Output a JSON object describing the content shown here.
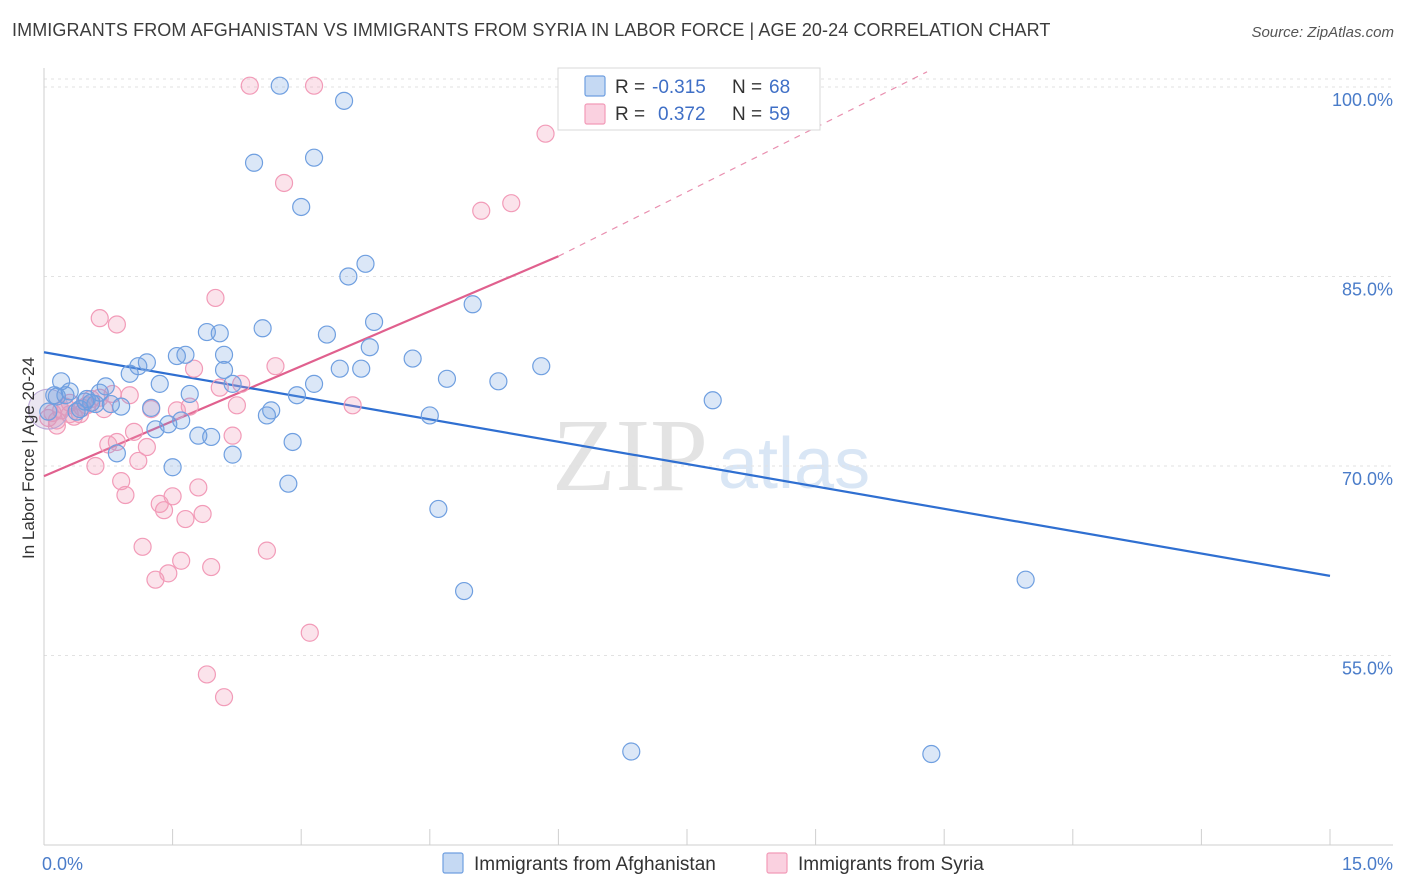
{
  "title": "IMMIGRANTS FROM AFGHANISTAN VS IMMIGRANTS FROM SYRIA IN LABOR FORCE | AGE 20-24 CORRELATION CHART",
  "source": "Source: ZipAtlas.com",
  "watermark": {
    "zip": "ZIP",
    "atlas": "atlas"
  },
  "legend": {
    "r_label": "R =",
    "n_label": "N =",
    "entries": [
      {
        "r": "-0.315",
        "n": "68"
      },
      {
        "r": "0.372",
        "n": "59"
      }
    ]
  },
  "bottom_legend": [
    "Immigrants from Afghanistan",
    "Immigrants from Syria"
  ],
  "chart_data": {
    "type": "scatter",
    "title": "IMMIGRANTS FROM AFGHANISTAN VS IMMIGRANTS FROM SYRIA IN LABOR FORCE | AGE 20-24 CORRELATION CHART",
    "xlabel": "",
    "ylabel": "In Labor Force | Age 20-24",
    "xlim": [
      0,
      15
    ],
    "ylim": [
      40,
      101.5
    ],
    "x_tick_labels": [
      "0.0%",
      "15.0%"
    ],
    "y_ticks": [
      55,
      70,
      85,
      100
    ],
    "y_tick_labels": [
      "55.0%",
      "70.0%",
      "85.0%",
      "100.0%"
    ],
    "grid": true,
    "colors": {
      "afghanistan": "#6f9fe0",
      "syria": "#f29bb8",
      "afghanistan_line": "#2f6fd1",
      "syria_line": "#e0608e"
    },
    "series": [
      {
        "name": "Immigrants from Afghanistan",
        "r": -0.315,
        "n": 68,
        "trend": {
          "x": [
            0,
            15
          ],
          "y": [
            79.0,
            61.3
          ]
        },
        "points": [
          [
            0.05,
            74.3
          ],
          [
            0.12,
            75.6
          ],
          [
            0.2,
            76.7
          ],
          [
            0.25,
            75.6
          ],
          [
            0.3,
            75.9
          ],
          [
            0.38,
            74.3
          ],
          [
            0.42,
            74.5
          ],
          [
            0.48,
            75.1
          ],
          [
            0.5,
            75.3
          ],
          [
            0.6,
            74.9
          ],
          [
            0.65,
            75.8
          ],
          [
            0.72,
            76.3
          ],
          [
            0.78,
            74.9
          ],
          [
            0.85,
            71.0
          ],
          [
            0.9,
            74.7
          ],
          [
            1.0,
            77.3
          ],
          [
            1.1,
            77.9
          ],
          [
            1.2,
            78.2
          ],
          [
            1.25,
            74.6
          ],
          [
            1.3,
            72.9
          ],
          [
            1.35,
            76.5
          ],
          [
            1.45,
            73.3
          ],
          [
            1.5,
            69.9
          ],
          [
            1.6,
            73.6
          ],
          [
            1.55,
            78.7
          ],
          [
            1.65,
            78.8
          ],
          [
            1.7,
            75.7
          ],
          [
            1.8,
            72.4
          ],
          [
            1.9,
            80.6
          ],
          [
            1.95,
            72.3
          ],
          [
            2.05,
            80.5
          ],
          [
            2.1,
            77.6
          ],
          [
            2.1,
            78.8
          ],
          [
            2.2,
            76.5
          ],
          [
            2.2,
            70.9
          ],
          [
            2.45,
            94.0
          ],
          [
            2.55,
            80.9
          ],
          [
            2.6,
            74.0
          ],
          [
            2.65,
            74.4
          ],
          [
            2.75,
            100.1
          ],
          [
            2.85,
            68.6
          ],
          [
            2.9,
            71.9
          ],
          [
            2.95,
            75.6
          ],
          [
            3.0,
            90.5
          ],
          [
            3.15,
            76.5
          ],
          [
            3.15,
            94.4
          ],
          [
            3.3,
            80.4
          ],
          [
            3.45,
            77.7
          ],
          [
            3.5,
            98.9
          ],
          [
            3.55,
            85.0
          ],
          [
            3.7,
            77.7
          ],
          [
            3.75,
            86.0
          ],
          [
            3.8,
            79.4
          ],
          [
            3.85,
            81.4
          ],
          [
            4.3,
            78.5
          ],
          [
            4.5,
            74.0
          ],
          [
            4.6,
            66.6
          ],
          [
            4.7,
            76.9
          ],
          [
            4.9,
            60.1
          ],
          [
            5.0,
            82.8
          ],
          [
            5.3,
            76.7
          ],
          [
            5.8,
            77.9
          ],
          [
            6.85,
            47.4
          ],
          [
            7.8,
            75.2
          ],
          [
            11.45,
            61.0
          ],
          [
            10.35,
            47.2
          ],
          [
            0.55,
            75.0
          ],
          [
            0.15,
            75.5
          ]
        ]
      },
      {
        "name": "Immigrants from Syria",
        "r": 0.372,
        "n": 59,
        "trend": {
          "x": [
            0,
            6.0
          ],
          "y": [
            69.2,
            86.6
          ]
        },
        "trend_extended": {
          "x": [
            6.0,
            10.3
          ],
          "y": [
            86.6,
            101.2
          ]
        },
        "points": [
          [
            0.05,
            73.8
          ],
          [
            0.1,
            74.2
          ],
          [
            0.15,
            73.6
          ],
          [
            0.2,
            74.4
          ],
          [
            0.25,
            74.7
          ],
          [
            0.3,
            75.0
          ],
          [
            0.35,
            73.9
          ],
          [
            0.42,
            74.1
          ],
          [
            0.5,
            74.8
          ],
          [
            0.55,
            75.3
          ],
          [
            0.6,
            70.0
          ],
          [
            0.65,
            75.4
          ],
          [
            0.7,
            74.5
          ],
          [
            0.75,
            71.7
          ],
          [
            0.8,
            75.7
          ],
          [
            0.85,
            71.9
          ],
          [
            0.9,
            68.8
          ],
          [
            0.95,
            67.7
          ],
          [
            0.65,
            81.7
          ],
          [
            0.85,
            81.2
          ],
          [
            1.05,
            72.7
          ],
          [
            1.1,
            70.4
          ],
          [
            1.15,
            63.6
          ],
          [
            1.2,
            71.5
          ],
          [
            1.25,
            74.5
          ],
          [
            1.3,
            61.0
          ],
          [
            1.35,
            67.0
          ],
          [
            1.4,
            66.5
          ],
          [
            1.45,
            61.5
          ],
          [
            1.5,
            67.6
          ],
          [
            1.55,
            74.4
          ],
          [
            1.6,
            62.5
          ],
          [
            1.65,
            65.8
          ],
          [
            1.7,
            74.7
          ],
          [
            1.75,
            77.7
          ],
          [
            1.8,
            68.3
          ],
          [
            1.85,
            66.2
          ],
          [
            1.9,
            53.5
          ],
          [
            1.95,
            62.0
          ],
          [
            2.0,
            83.3
          ],
          [
            2.05,
            76.2
          ],
          [
            2.1,
            51.7
          ],
          [
            2.2,
            72.4
          ],
          [
            2.25,
            74.8
          ],
          [
            2.3,
            76.5
          ],
          [
            2.4,
            100.1
          ],
          [
            2.6,
            63.3
          ],
          [
            2.7,
            77.9
          ],
          [
            2.8,
            92.4
          ],
          [
            3.1,
            56.8
          ],
          [
            3.15,
            100.1
          ],
          [
            3.6,
            74.8
          ],
          [
            5.1,
            90.2
          ],
          [
            5.45,
            90.8
          ],
          [
            5.85,
            96.3
          ],
          [
            0.45,
            74.6
          ],
          [
            0.15,
            73.2
          ],
          [
            1.0,
            75.6
          ],
          [
            0.3,
            74.1
          ]
        ]
      }
    ]
  }
}
